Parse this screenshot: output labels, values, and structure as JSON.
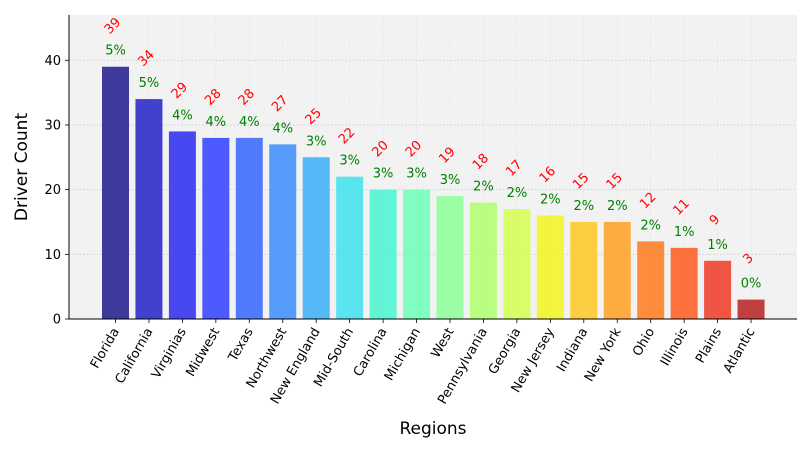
{
  "chart_data": {
    "type": "bar",
    "xlabel": "Regions",
    "ylabel": "Driver Count",
    "ylim": [
      0,
      47
    ],
    "yticks": [
      0,
      10,
      20,
      30,
      40
    ],
    "grid": true,
    "categories": [
      "Florida",
      "California",
      "Virginias",
      "Midwest",
      "Texas",
      "Northwest",
      "New England",
      "Mid-South",
      "Carolina",
      "Michigan",
      "West",
      "Pennsylvania",
      "Georgia",
      "New Jersey",
      "Indiana",
      "New York",
      "Ohio",
      "Illinois",
      "Plains",
      "Atlantic"
    ],
    "values": [
      39,
      34,
      29,
      28,
      28,
      27,
      25,
      22,
      20,
      20,
      19,
      18,
      17,
      16,
      15,
      15,
      12,
      11,
      9,
      3
    ],
    "percent_labels": [
      "5%",
      "5%",
      "4%",
      "4%",
      "4%",
      "4%",
      "3%",
      "3%",
      "3%",
      "3%",
      "3%",
      "2%",
      "2%",
      "2%",
      "2%",
      "2%",
      "2%",
      "1%",
      "1%",
      "0%"
    ],
    "colors": [
      "#1f1a8c",
      "#2222c8",
      "#2a2af0",
      "#3040ff",
      "#3565ff",
      "#3a8dff",
      "#3aaef8",
      "#3ee2f0",
      "#48f5d0",
      "#6cffb8",
      "#8cff96",
      "#b0ff70",
      "#d4ff50",
      "#f2f51e",
      "#ffc822",
      "#ffa020",
      "#ff7a1c",
      "#ff5a1e",
      "#f03a26",
      "#b82020"
    ],
    "plot_background": "#f2f2f2",
    "value_label_color": "#ff0000",
    "percent_label_color": "#008000"
  }
}
